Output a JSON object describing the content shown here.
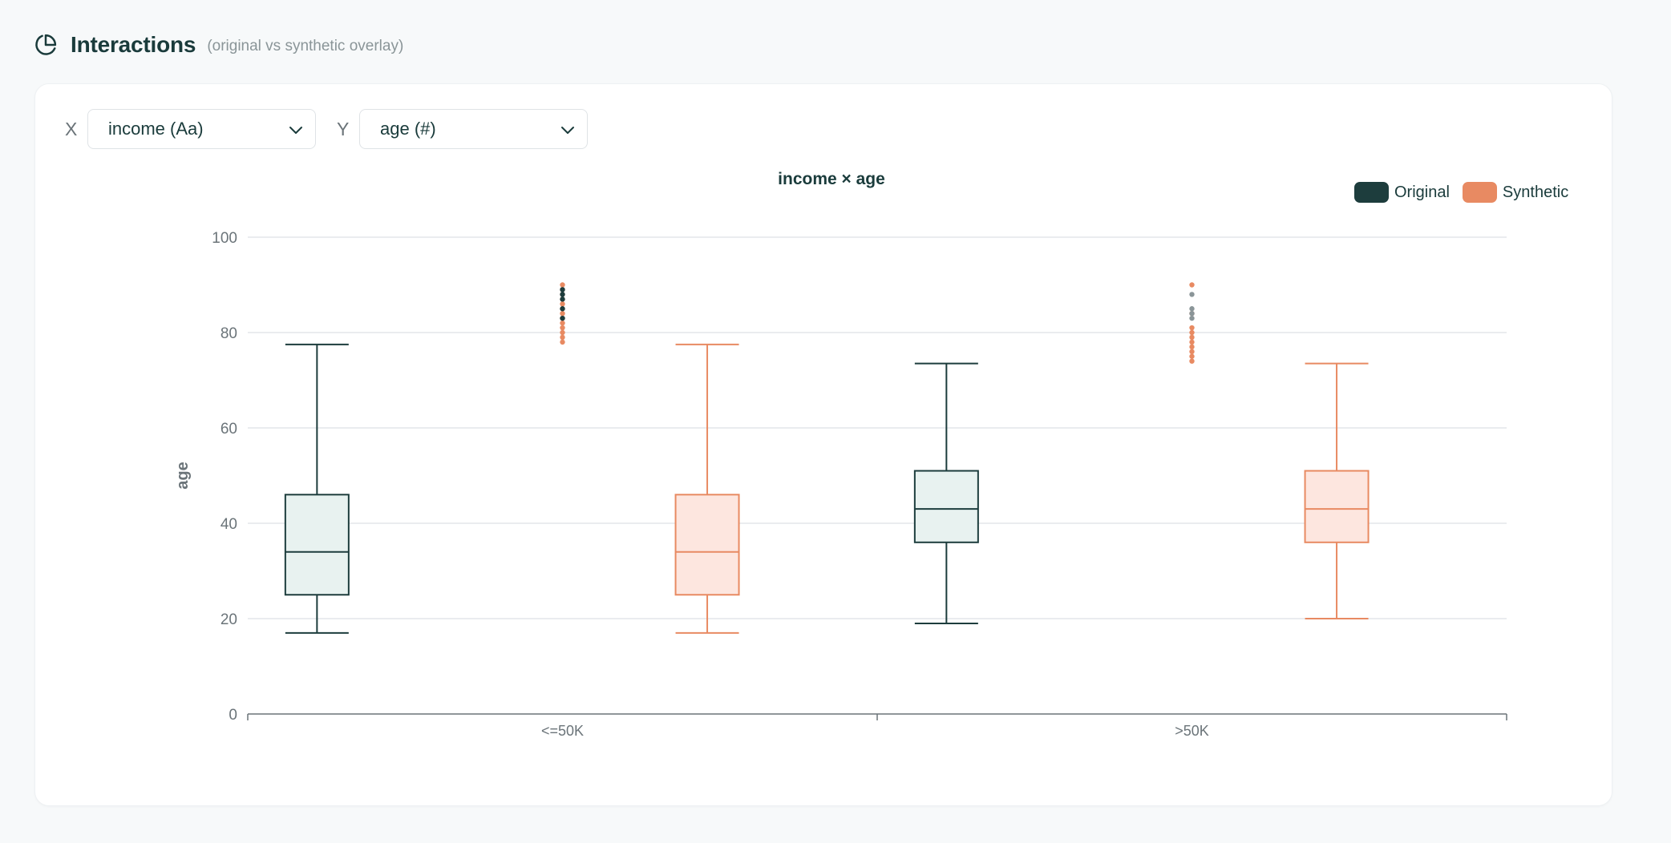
{
  "header": {
    "title": "Interactions",
    "subtitle": "(original vs synthetic overlay)",
    "icon": "pie-chart-icon"
  },
  "controls": {
    "x_label": "X",
    "x_value": "income (Aa)",
    "y_label": "Y",
    "y_value": "age (#)"
  },
  "colors": {
    "original": "#1d3d3d",
    "original_fill": "#e8f2f0",
    "synthetic": "#e88a62",
    "synthetic_fill": "#fde6df",
    "grid": "#e3e6ea",
    "axis": "#6b7479",
    "outlier_grey": "#8a9598"
  },
  "chart_data": {
    "type": "box",
    "title": "income × age",
    "xlabel": "",
    "ylabel": "age",
    "ylim": [
      0,
      100
    ],
    "yticks": [
      0,
      20,
      40,
      60,
      80,
      100
    ],
    "grid": true,
    "legend_position": "top-right",
    "categories": [
      "<=50K",
      ">50K"
    ],
    "series": [
      {
        "name": "Original",
        "boxes": [
          {
            "category": "<=50K",
            "min": 17,
            "q1": 25,
            "median": 34,
            "q3": 46,
            "max": 77.5
          },
          {
            "category": ">50K",
            "min": 19,
            "q1": 36,
            "median": 43,
            "q3": 51,
            "max": 73.5
          }
        ]
      },
      {
        "name": "Synthetic",
        "boxes": [
          {
            "category": "<=50K",
            "min": 17,
            "q1": 25,
            "median": 34,
            "q3": 46,
            "max": 77.5
          },
          {
            "category": ">50K",
            "min": 20,
            "q1": 36,
            "median": 43,
            "q3": 51,
            "max": 73.5
          }
        ]
      }
    ],
    "outliers": [
      {
        "category": "<=50K",
        "series": "Synthetic",
        "values": [
          90,
          89,
          88,
          87,
          86,
          85,
          84,
          83,
          82,
          81,
          80,
          79,
          78
        ]
      },
      {
        "category": "<=50K",
        "series": "Original",
        "values": [
          89,
          88,
          87,
          85,
          83
        ]
      },
      {
        "category": ">50K",
        "series": "Synthetic",
        "values": [
          90,
          84,
          81,
          80,
          79,
          78,
          77,
          76,
          75,
          74
        ]
      },
      {
        "category": ">50K",
        "series": "Original",
        "values": [
          88,
          85,
          84,
          83
        ]
      }
    ]
  }
}
